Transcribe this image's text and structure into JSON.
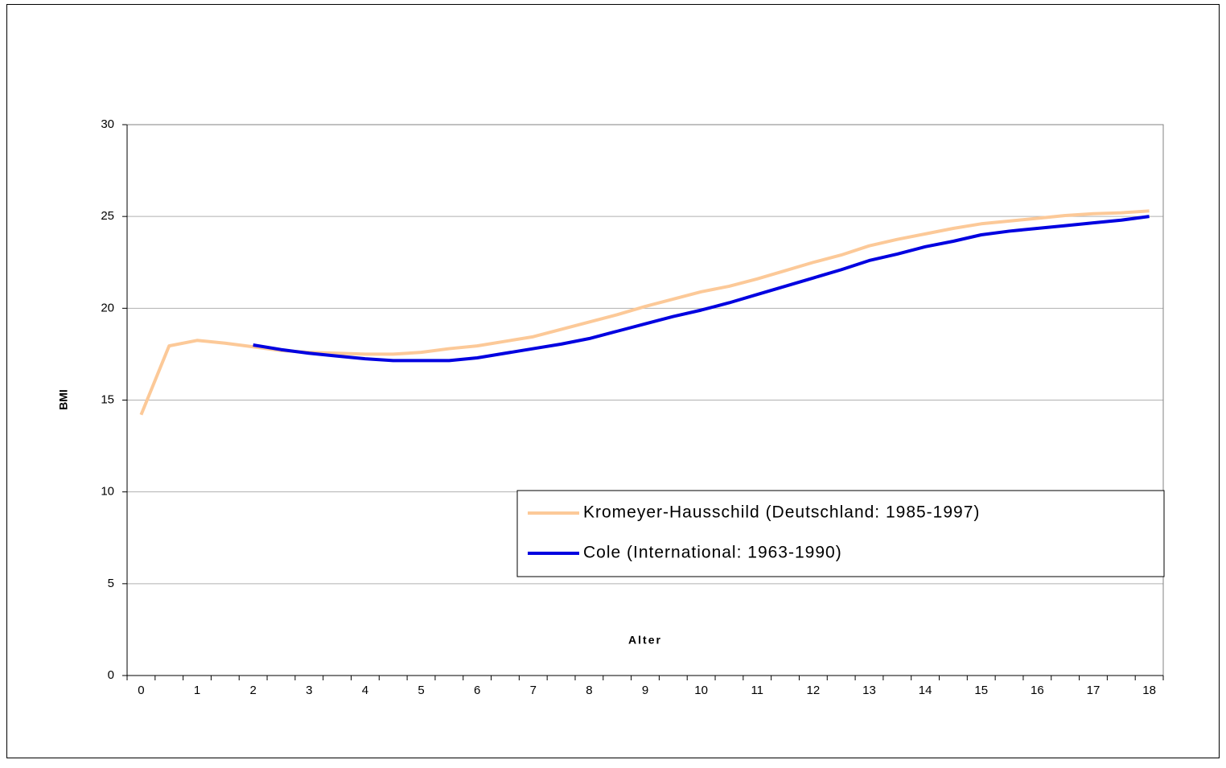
{
  "chart_data": {
    "type": "line",
    "x_label": "Alter",
    "y_label": "BMI",
    "categories": [
      "0",
      null,
      "1",
      null,
      "2",
      null,
      "3",
      null,
      "4",
      null,
      "5",
      null,
      "6",
      null,
      "7",
      null,
      "8",
      null,
      "9",
      null,
      "10",
      null,
      "11",
      null,
      "12",
      null,
      "13",
      null,
      "14",
      null,
      "15",
      null,
      "16",
      null,
      "17",
      null,
      "18"
    ],
    "series": [
      {
        "name": "Kromeyer-Hausschild (Deutschland: 1985-1997)",
        "color": "#fcc998",
        "values": [
          14.2,
          17.95,
          18.25,
          18.1,
          17.9,
          17.7,
          17.6,
          17.55,
          17.5,
          17.5,
          17.6,
          17.8,
          17.95,
          18.2,
          18.45,
          18.85,
          19.25,
          19.65,
          20.1,
          20.5,
          20.9,
          21.2,
          21.6,
          22.05,
          22.5,
          22.9,
          23.4,
          23.75,
          24.05,
          24.35,
          24.6,
          24.75,
          24.9,
          25.05,
          25.15,
          25.2,
          25.3
        ]
      },
      {
        "name": "Cole (International: 1963-1990)",
        "color": "#0000e0",
        "values": [
          null,
          null,
          null,
          null,
          18.0,
          17.75,
          17.55,
          17.4,
          17.25,
          17.15,
          17.15,
          17.15,
          17.3,
          17.55,
          17.8,
          18.05,
          18.35,
          18.75,
          19.15,
          19.55,
          19.9,
          20.3,
          20.75,
          21.2,
          21.65,
          22.1,
          22.6,
          22.95,
          23.35,
          23.65,
          24.0,
          24.2,
          24.35,
          24.5,
          24.65,
          24.8,
          25.0
        ]
      }
    ],
    "ylim": [
      0,
      30
    ],
    "yticks": [
      0,
      5,
      10,
      15,
      20,
      25,
      30
    ],
    "grid": true,
    "legend": "lower-right"
  }
}
